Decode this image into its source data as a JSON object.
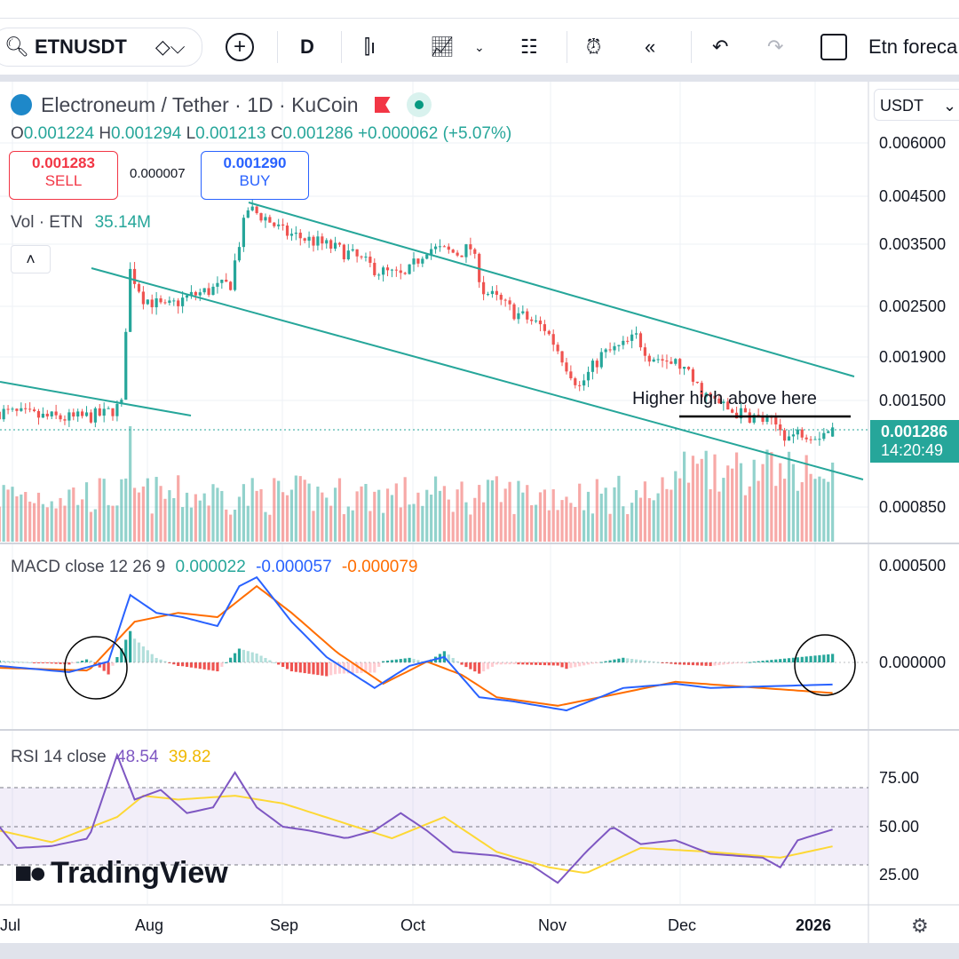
{
  "toolbar": {
    "symbol": "ETNUSDT",
    "interval": "D",
    "layout_name": "Etn foreca"
  },
  "header": {
    "title": "Electroneum / Tether · 1D · KuCoin",
    "ohlc": {
      "o_label": "O",
      "o": "0.001224",
      "h_label": "H",
      "h": "0.001294",
      "l_label": "L",
      "l": "0.001213",
      "c_label": "C",
      "c": "0.001286",
      "change": "+0.000062 (+5.07%)"
    },
    "sell_price": "0.001283",
    "sell_label": "SELL",
    "spread": "0.000007",
    "buy_price": "0.001290",
    "buy_label": "BUY",
    "vol_label": "Vol · ETN",
    "vol_value": "35.14M"
  },
  "currency": "USDT",
  "price_axis": [
    "0.006000",
    "0.004500",
    "0.003500",
    "0.002500",
    "0.001900",
    "0.001500",
    "0.000850"
  ],
  "last_price": "0.001286",
  "countdown": "14:20:49",
  "annotation": "Higher high above here",
  "macd": {
    "label": "MACD close 12 26 9",
    "hist": "0.000022",
    "macd": "-0.000057",
    "signal": "-0.000079",
    "axis": [
      "0.000500",
      "0.000000"
    ]
  },
  "rsi": {
    "label": "RSI 14 close",
    "value": "48.54",
    "ma": "39.82",
    "axis": [
      "75.00",
      "50.00",
      "25.00"
    ]
  },
  "time_axis": [
    "Jul",
    "Aug",
    "Sep",
    "Oct",
    "Nov",
    "Dec",
    "2026"
  ],
  "watermark": "TradingView",
  "colors": {
    "up": "#26a69a",
    "down": "#ef5350",
    "macd": "#2962ff",
    "signal": "#ff6d00",
    "rsi": "#7e57c2",
    "rsi_ma": "#fdd835",
    "channel": "#26a69a"
  },
  "chart_data": {
    "type": "candlestick",
    "x_unit": "days since Jul 1",
    "price_scale": "log",
    "close_anchors": [
      [
        -3,
        0.0014
      ],
      [
        7,
        0.00136
      ],
      [
        14,
        0.00135
      ],
      [
        21,
        0.00138
      ],
      [
        25,
        0.00145
      ],
      [
        27,
        0.003
      ],
      [
        30,
        0.0026
      ],
      [
        35,
        0.00245
      ],
      [
        40,
        0.0026
      ],
      [
        45,
        0.0027
      ],
      [
        50,
        0.0028
      ],
      [
        54,
        0.0042
      ],
      [
        58,
        0.004
      ],
      [
        62,
        0.0037
      ],
      [
        70,
        0.0035
      ],
      [
        77,
        0.0033
      ],
      [
        84,
        0.003
      ],
      [
        90,
        0.0029
      ],
      [
        95,
        0.0034
      ],
      [
        102,
        0.0033
      ],
      [
        105,
        0.0034
      ],
      [
        108,
        0.0027
      ],
      [
        115,
        0.0024
      ],
      [
        122,
        0.0022
      ],
      [
        127,
        0.0018
      ],
      [
        130,
        0.0016
      ],
      [
        135,
        0.0019
      ],
      [
        140,
        0.002
      ],
      [
        143,
        0.0021
      ],
      [
        146,
        0.0019
      ],
      [
        153,
        0.0018
      ],
      [
        157,
        0.0016
      ],
      [
        160,
        0.0015
      ],
      [
        165,
        0.0014
      ],
      [
        170,
        0.00136
      ],
      [
        175,
        0.0013
      ],
      [
        178,
        0.00122
      ],
      [
        181,
        0.00126
      ],
      [
        185,
        0.00124
      ],
      [
        188,
        0.001286
      ]
    ],
    "macd_e6": [
      [
        -3,
        -9
      ],
      [
        13,
        -25
      ],
      [
        22,
        2
      ],
      [
        27,
        174
      ],
      [
        33,
        128
      ],
      [
        39,
        117
      ],
      [
        47,
        94
      ],
      [
        52,
        197
      ],
      [
        56,
        220
      ],
      [
        64,
        105
      ],
      [
        72,
        14
      ],
      [
        83,
        -66
      ],
      [
        91,
        -9
      ],
      [
        99,
        14
      ],
      [
        107,
        -90
      ],
      [
        115,
        -101
      ],
      [
        127,
        -124
      ],
      [
        140,
        -66
      ],
      [
        152,
        -55
      ],
      [
        160,
        -66
      ],
      [
        172,
        -62
      ],
      [
        188,
        -57
      ]
    ],
    "signal_e6": [
      [
        -3,
        -14
      ],
      [
        17.5,
        -21
      ],
      [
        28,
        105
      ],
      [
        38,
        128
      ],
      [
        47,
        117
      ],
      [
        56,
        197
      ],
      [
        64,
        128
      ],
      [
        74.5,
        25
      ],
      [
        85,
        -55
      ],
      [
        95,
        2
      ],
      [
        103,
        -32
      ],
      [
        111,
        -90
      ],
      [
        125,
        -112
      ],
      [
        140,
        -78
      ],
      [
        152,
        -50
      ],
      [
        164,
        -60
      ],
      [
        188,
        -79
      ]
    ],
    "rsi": [
      [
        -3,
        50
      ],
      [
        1,
        39
      ],
      [
        9,
        40
      ],
      [
        17.5,
        44
      ],
      [
        24,
        87
      ],
      [
        28,
        64
      ],
      [
        34,
        69
      ],
      [
        40,
        57
      ],
      [
        46,
        60
      ],
      [
        51,
        78
      ],
      [
        56,
        60
      ],
      [
        62,
        50
      ],
      [
        68,
        48
      ],
      [
        76.5,
        44
      ],
      [
        83,
        48
      ],
      [
        89,
        57
      ],
      [
        95,
        48
      ],
      [
        101,
        37
      ],
      [
        111,
        35
      ],
      [
        119,
        30
      ],
      [
        125,
        21
      ],
      [
        131.5,
        37
      ],
      [
        137.5,
        50
      ],
      [
        144,
        41
      ],
      [
        152,
        43
      ],
      [
        160,
        36
      ],
      [
        172,
        34
      ],
      [
        176,
        29
      ],
      [
        180,
        43
      ],
      [
        188,
        48.54
      ]
    ],
    "rsi_ma": [
      [
        -3,
        48
      ],
      [
        9,
        42
      ],
      [
        24,
        55
      ],
      [
        30,
        66
      ],
      [
        38,
        64
      ],
      [
        51,
        66
      ],
      [
        62,
        62
      ],
      [
        74.5,
        53
      ],
      [
        87,
        44
      ],
      [
        99,
        55
      ],
      [
        111,
        37
      ],
      [
        123,
        29
      ],
      [
        131.5,
        26
      ],
      [
        144,
        39
      ],
      [
        160,
        37
      ],
      [
        176,
        34
      ],
      [
        188,
        39.82
      ]
    ]
  }
}
